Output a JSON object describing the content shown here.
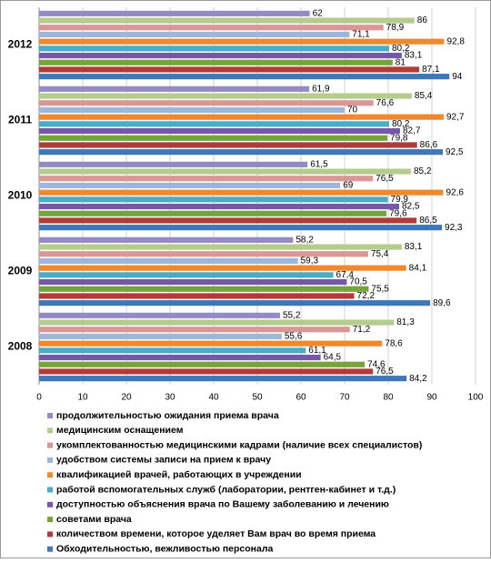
{
  "chart_data": {
    "type": "hbar",
    "categories": [
      "2012",
      "2011",
      "2010",
      "2009",
      "2008"
    ],
    "series": [
      {
        "name": "продолжительностью ожидания приема врача",
        "color": "#938bc4",
        "values": [
          62,
          61.9,
          61.5,
          58.2,
          55.2
        ],
        "value_labels": [
          "62",
          "61,9",
          "61,5",
          "58,2",
          "55,2"
        ]
      },
      {
        "name": "медицинским оснащением",
        "color": "#b5cc8e",
        "values": [
          86,
          85.4,
          85.2,
          83.1,
          81.3
        ],
        "value_labels": [
          "86",
          "85,4",
          "85,2",
          "83,1",
          "81,3"
        ]
      },
      {
        "name": "укомплектованностью медицинскими кадрами (наличие всех специалистов)",
        "color": "#d99795",
        "values": [
          78.9,
          76.6,
          76.5,
          75.4,
          71.2
        ],
        "value_labels": [
          "78,9",
          "76,6",
          "76,5",
          "75,4",
          "71,2"
        ]
      },
      {
        "name": "удобством системы записи на прием к врачу",
        "color": "#9db6dc",
        "values": [
          71.1,
          70,
          69,
          59.3,
          55.6
        ],
        "value_labels": [
          "71,1",
          "70",
          "69",
          "59,3",
          "55,6"
        ]
      },
      {
        "name": "квалификацией врачей, работающих в учреждении",
        "color": "#f0882e",
        "values": [
          92.8,
          92.7,
          92.6,
          84.1,
          78.6
        ],
        "value_labels": [
          "92,8",
          "92,7",
          "92,6",
          "84,1",
          "78,6"
        ]
      },
      {
        "name": "работой вспомогательных служб (лаборатории, рентген-кабинет и т.д.)",
        "color": "#4bacc6",
        "values": [
          80.2,
          80.2,
          79.9,
          67.4,
          61.1
        ],
        "value_labels": [
          "80,2",
          "80,2",
          "79,9",
          "67,4",
          "61,1"
        ]
      },
      {
        "name": "доступностью объяснения врача по Вашему заболеванию и лечению",
        "color": "#7659a6",
        "values": [
          83.1,
          82.7,
          82.5,
          70.5,
          64.5
        ],
        "value_labels": [
          "83,1",
          "82,7",
          "82,5",
          "70,5",
          "64,5"
        ]
      },
      {
        "name": "советами врача",
        "color": "#77a33b",
        "values": [
          81,
          79.8,
          79.6,
          75.5,
          74.6
        ],
        "value_labels": [
          "81",
          "79,8",
          "79,6",
          "75,5",
          "74,6"
        ]
      },
      {
        "name": "количеством времени, которое уделяет Вам врач во время приема",
        "color": "#b03b37",
        "values": [
          87.1,
          86.6,
          86.5,
          72.2,
          76.5
        ],
        "value_labels": [
          "87,1",
          "86,6",
          "86,5",
          "72,2",
          "76,5"
        ]
      },
      {
        "name": "Обходительностью, вежливостью персонала",
        "color": "#3f77b9",
        "values": [
          94,
          92.5,
          92.3,
          89.6,
          84.2
        ],
        "value_labels": [
          "94",
          "92,5",
          "92,3",
          "89,6",
          "84,2"
        ]
      }
    ],
    "xlim": [
      0,
      100
    ],
    "xticks": [
      0,
      10,
      20,
      30,
      40,
      50,
      60,
      70,
      80,
      90,
      100
    ],
    "grid": true
  }
}
